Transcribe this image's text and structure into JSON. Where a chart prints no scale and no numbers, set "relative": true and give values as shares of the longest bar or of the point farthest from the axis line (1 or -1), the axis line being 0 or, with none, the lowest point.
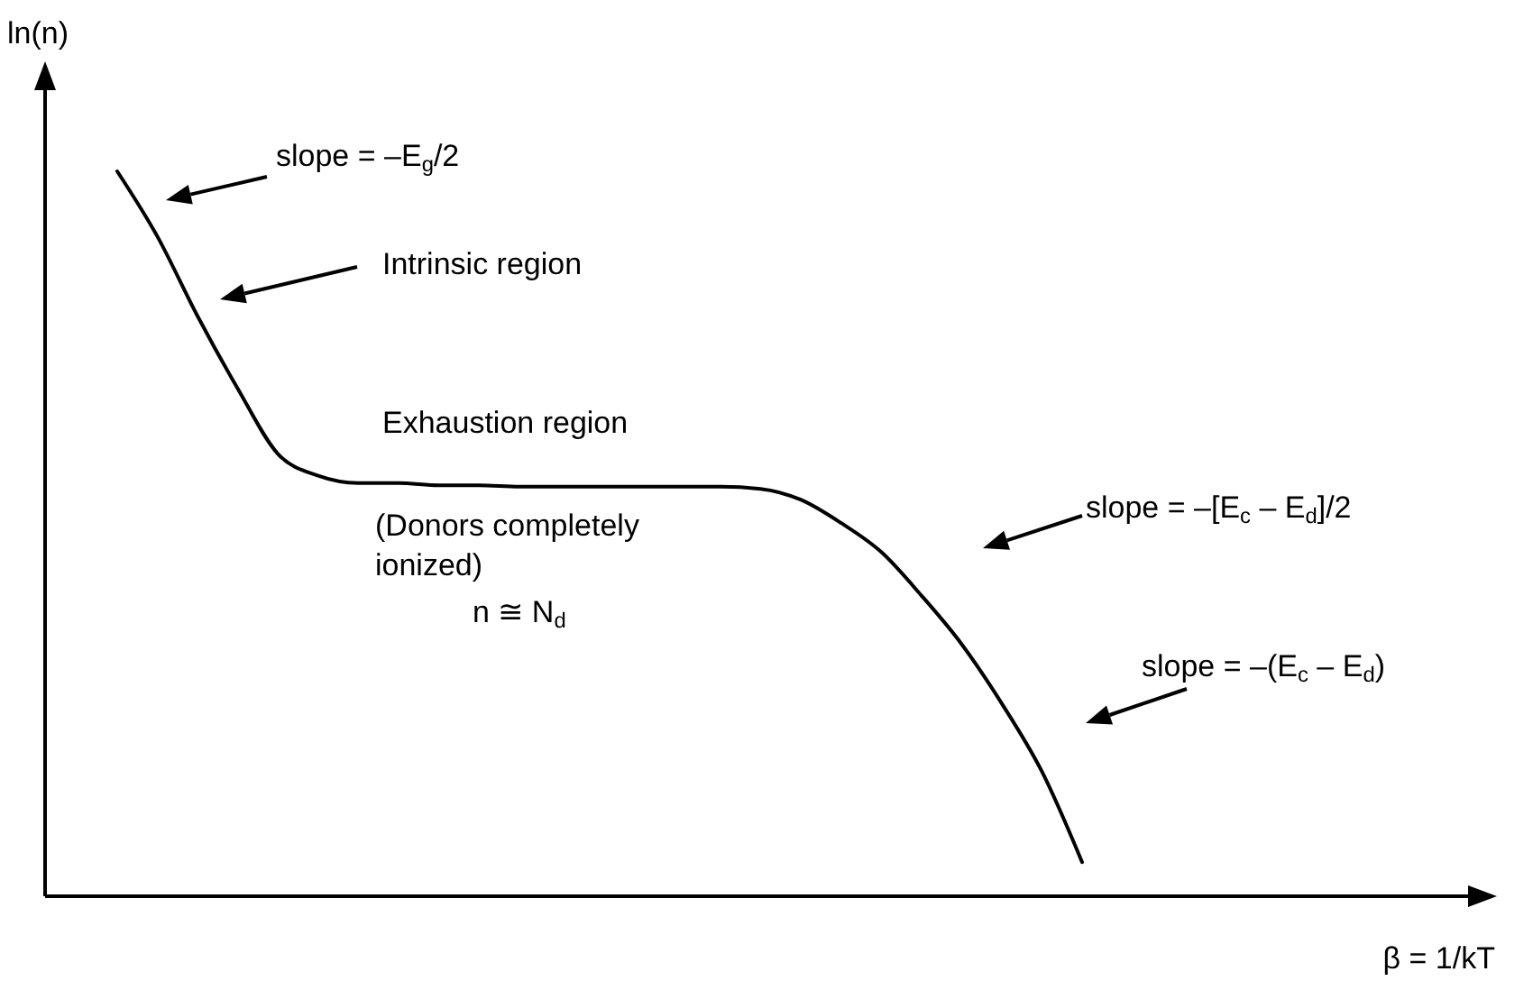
{
  "chart_data": {
    "type": "line",
    "relative": true,
    "ylabel": "ln(n)",
    "categories": [
      null,
      null,
      null,
      null,
      null,
      null,
      null,
      null,
      null,
      null,
      null,
      null,
      null,
      null,
      null,
      null,
      null,
      null,
      null,
      null,
      null,
      null,
      null,
      null,
      null
    ],
    "values": [
      1,
      0.91,
      0.8,
      0.7,
      0.61,
      0.58,
      0.57,
      0.57,
      0.567,
      0.567,
      0.565,
      0.565,
      0.565,
      0.565,
      0.565,
      0.565,
      0.562,
      0.547,
      0.515,
      0.475,
      0.415,
      0.348,
      0.266,
      0.172,
      0.047
    ],
    "color": "#000000",
    "annotations": [
      "slope = –E$_{g}$/2",
      "Intrinsic region",
      "Exhaustion region",
      "(Donors completely ionized)",
      "n ≅ N$_{d}$",
      "slope = –[E$_{c}$ – E$_{d}$]/2",
      "slope = –(E$_{c}$ – E$_{d}$)",
      "β = 1/kT"
    ]
  }
}
